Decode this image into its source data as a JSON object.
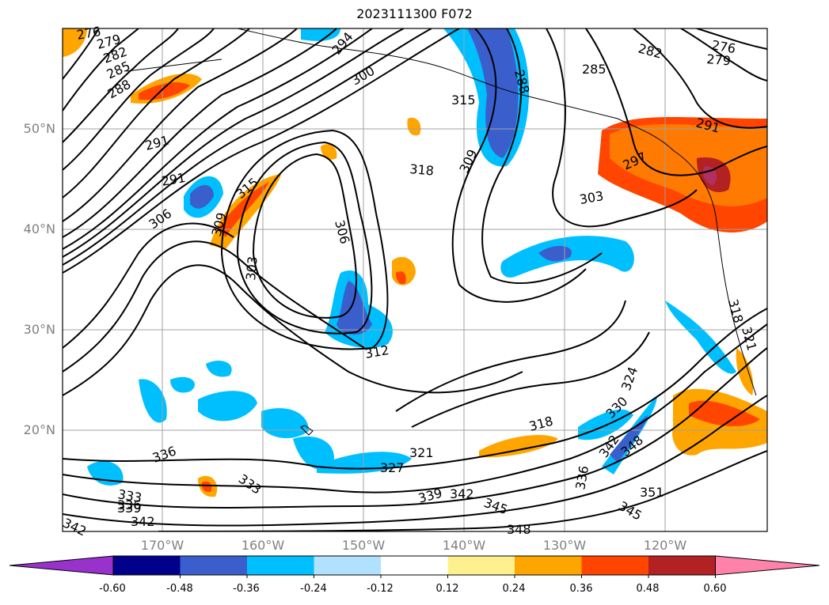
{
  "title": "2023111300 F072",
  "lat_labels": [
    "50°N",
    "40°N",
    "30°N",
    "20°N"
  ],
  "lon_labels": [
    "170°W",
    "160°W",
    "150°W",
    "140°W",
    "130°W",
    "120°W"
  ],
  "colorbar": {
    "ticks": [
      "-0.60",
      "-0.48",
      "-0.36",
      "-0.24",
      "-0.12",
      "0.12",
      "0.24",
      "0.36",
      "0.48",
      "0.60"
    ],
    "colors": [
      "#9932cc",
      "#00008b",
      "#3a5fcd",
      "#00bfff",
      "#b0e2ff",
      "#ffffff",
      "#fff08f",
      "#ffa500",
      "#ff4500",
      "#b22222",
      "#ff82ab"
    ]
  },
  "contour_labels": [
    "276",
    "279",
    "282",
    "285",
    "288",
    "291",
    "291",
    "294",
    "300",
    "306",
    "309",
    "315",
    "315",
    "318",
    "306",
    "303",
    "309",
    "312",
    "285",
    "282",
    "276",
    "279",
    "288",
    "291",
    "297",
    "303",
    "318",
    "321",
    "324",
    "330",
    "342",
    "348",
    "351",
    "345",
    "336",
    "348",
    "318",
    "321",
    "327",
    "333",
    "336",
    "333",
    "336",
    "339",
    "342",
    "342",
    "339",
    "342",
    "345"
  ]
}
